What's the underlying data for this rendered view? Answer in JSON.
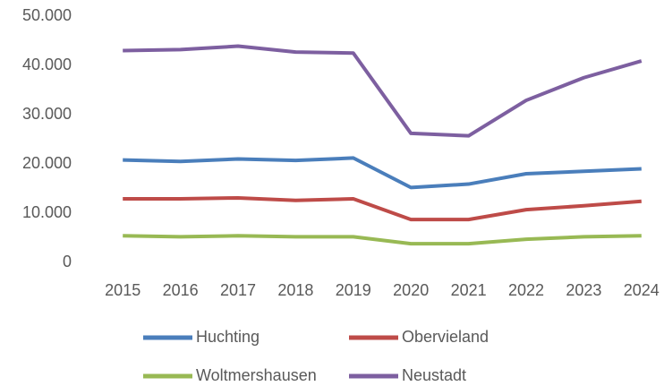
{
  "chart_data": {
    "type": "line",
    "categories": [
      "2015",
      "2016",
      "2017",
      "2018",
      "2019",
      "2020",
      "2021",
      "2022",
      "2023",
      "2024"
    ],
    "series": [
      {
        "name": "Huchting",
        "color": "#4a7ebb",
        "values": [
          20800,
          20500,
          21000,
          20700,
          21200,
          15200,
          15900,
          18000,
          18500,
          19000
        ]
      },
      {
        "name": "Obervieland",
        "color": "#be4b48",
        "values": [
          12900,
          12900,
          13100,
          12600,
          12900,
          8700,
          8700,
          10700,
          11500,
          12400
        ]
      },
      {
        "name": "Woltmershausen",
        "color": "#98b954",
        "values": [
          5400,
          5200,
          5400,
          5200,
          5200,
          3800,
          3800,
          4700,
          5200,
          5400
        ]
      },
      {
        "name": "Neustadt",
        "color": "#7d5fa0",
        "values": [
          43000,
          43200,
          43900,
          42700,
          42500,
          26200,
          25700,
          32900,
          37500,
          40900
        ]
      }
    ],
    "ylim": [
      0,
      50000
    ],
    "yticks": [
      0,
      {
        "value": 10000,
        "label": "10.000"
      },
      {
        "value": 20000,
        "label": "20.000"
      },
      {
        "value": 30000,
        "label": "30.000"
      },
      {
        "value": 40000,
        "label": "40.000"
      },
      {
        "value": 50000,
        "label": "50.000"
      }
    ],
    "grid": false,
    "legend": "bottom"
  }
}
